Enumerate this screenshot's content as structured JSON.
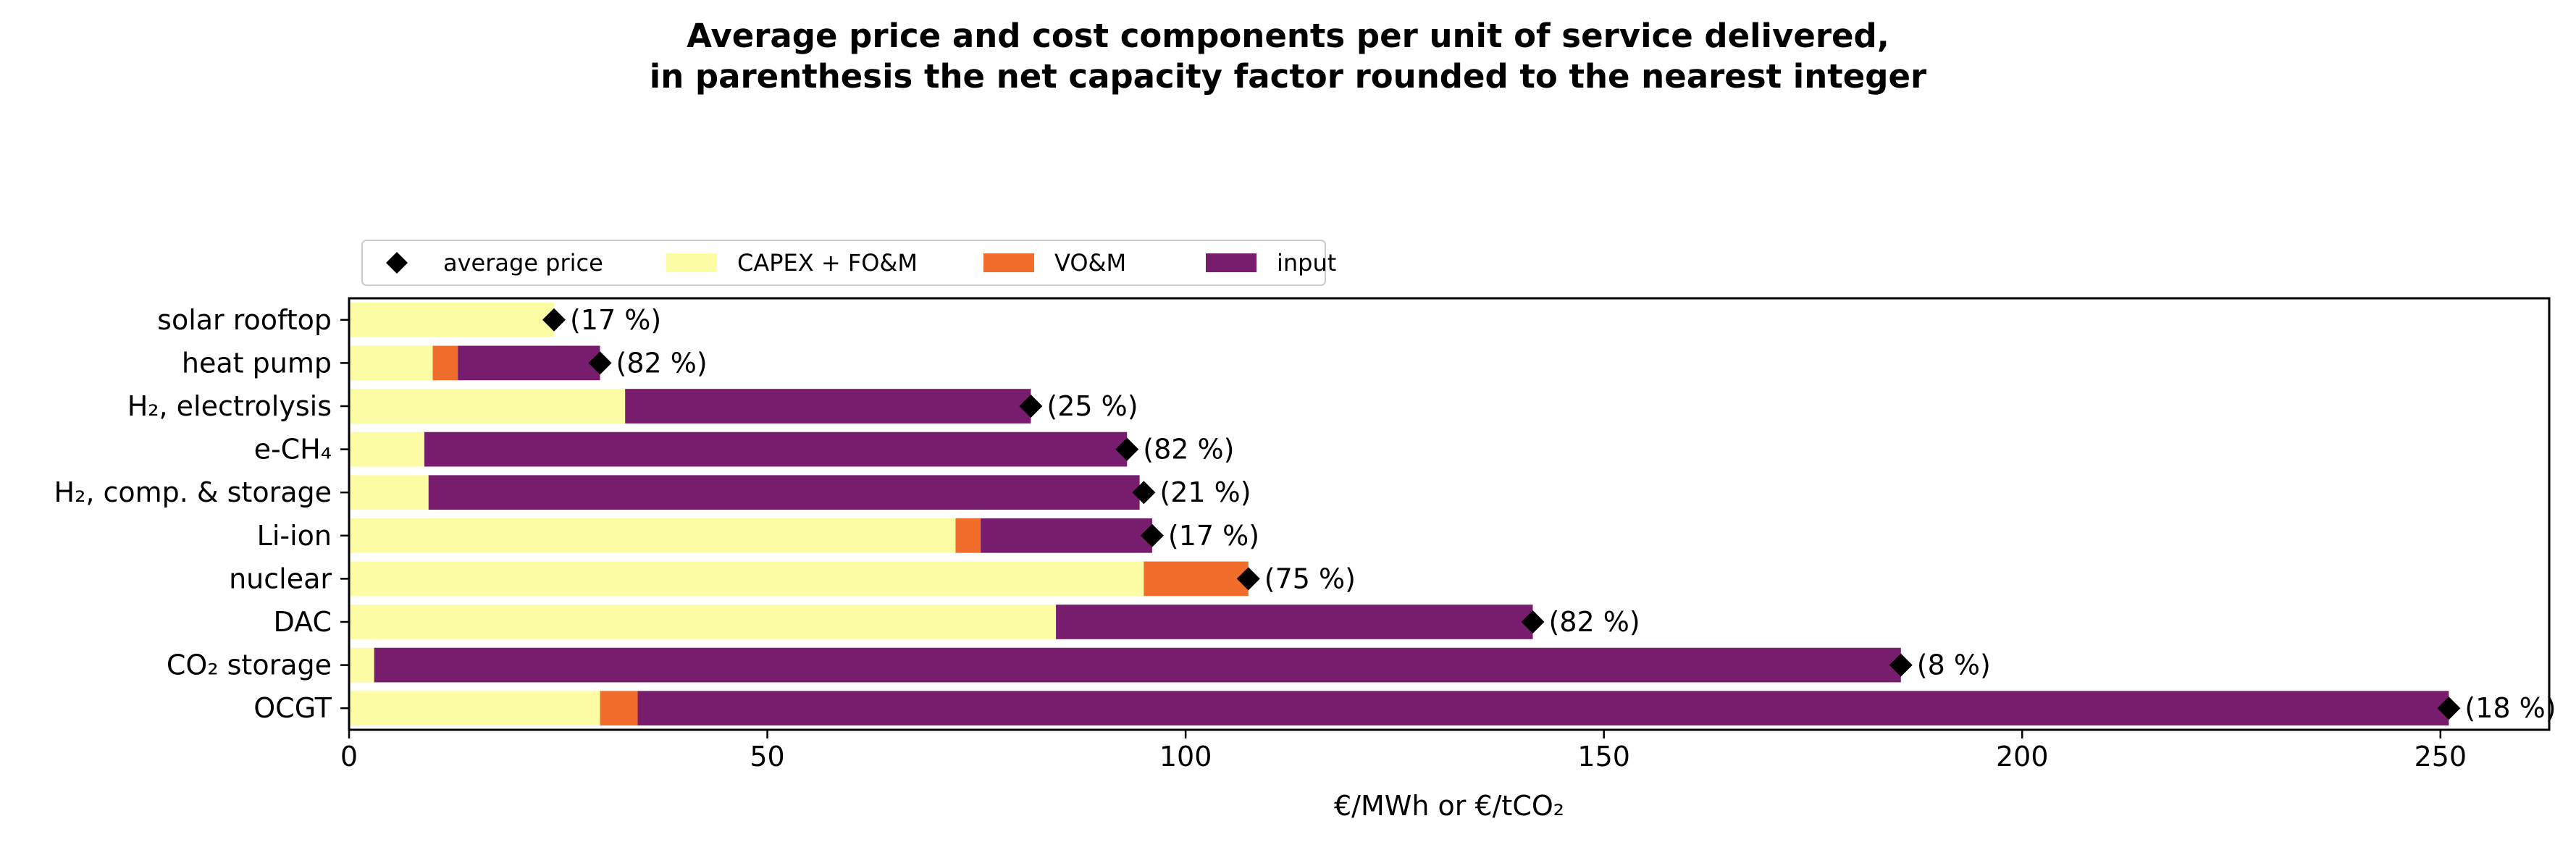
{
  "title": "Average price and cost components per unit of service delivered,\nin parenthesis the net capacity factor rounded to the nearest integer",
  "colors": {
    "capex": "#fcfca4",
    "vom": "#f16d2b",
    "input": "#781c6d",
    "marker": "#000000"
  },
  "chart_data": {
    "type": "bar",
    "orientation": "horizontal",
    "stacked": true,
    "title": "Average price and cost components per unit of service delivered,\nin parenthesis the net capacity factor rounded to the nearest integer",
    "xlabel": "€/MWh or €/tCO₂",
    "ylabel": "",
    "xlim": [
      0,
      263
    ],
    "xticks": [
      0,
      50,
      100,
      150,
      200,
      250
    ],
    "grid": false,
    "legend_position": "top-left, above plot",
    "categories": [
      "solar rooftop",
      "heat pump",
      "H₂, electrolysis",
      "e-CH₄",
      "H₂, comp. & storage",
      "Li-ion",
      "nuclear",
      "DAC",
      "CO₂ storage",
      "OCGT"
    ],
    "series": [
      {
        "name": "CAPEX + FO&M",
        "values": [
          24.5,
          10,
          33,
          9,
          9.5,
          72.5,
          95,
          84.5,
          3,
          30
        ]
      },
      {
        "name": "VO&M",
        "values": [
          0,
          3,
          0,
          0,
          0,
          3,
          12.5,
          0,
          0,
          4.5
        ]
      },
      {
        "name": "input",
        "values": [
          0,
          17,
          48.5,
          84,
          85,
          20.5,
          0,
          57,
          182.5,
          216.5
        ]
      }
    ],
    "average_price": {
      "name": "average price",
      "values": [
        24.5,
        30,
        81.5,
        93,
        95,
        96,
        107.5,
        141.5,
        185.5,
        251
      ]
    },
    "annotations": [
      "(17 %)",
      "(82 %)",
      "(25 %)",
      "(82 %)",
      "(21 %)",
      "(17 %)",
      "(75 %)",
      "(82 %)",
      "(8 %)",
      "(18 %)"
    ]
  }
}
